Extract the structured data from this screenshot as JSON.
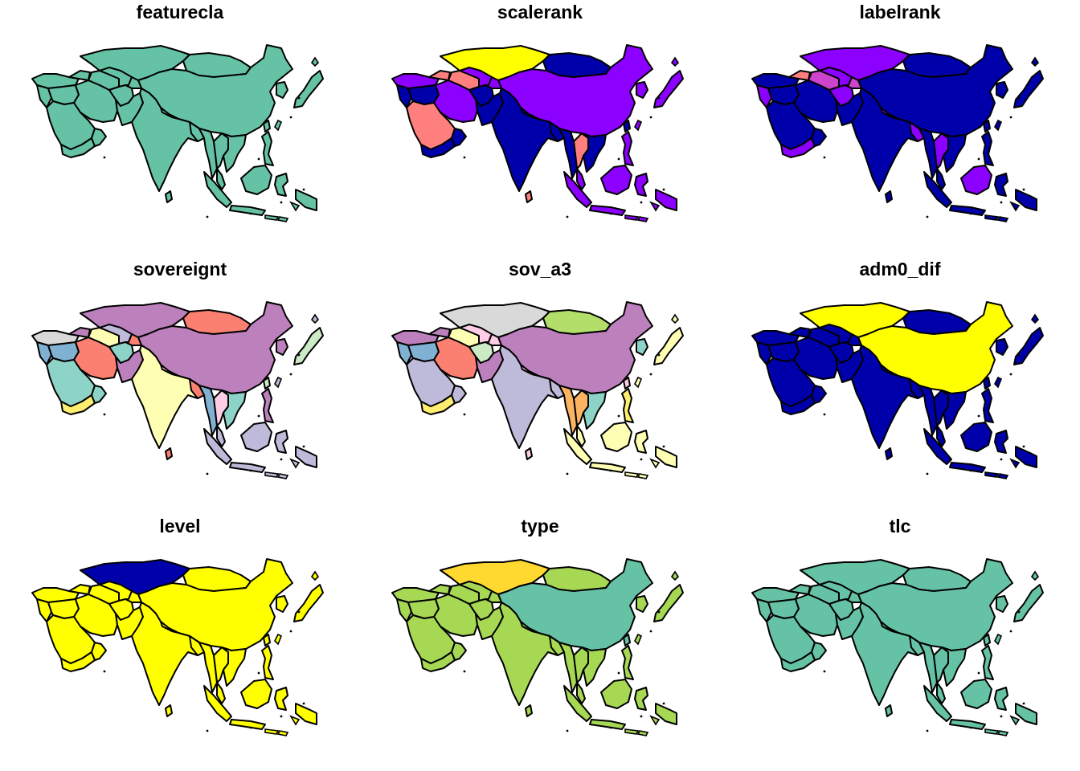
{
  "figure": {
    "panels": [
      {
        "title": "featurecla",
        "colors": {
          "ru_kz": "#66C2A5",
          "mongolia": "#66C2A5",
          "china": "#66C2A5",
          "japan": "#66C2A5",
          "turkey": "#66C2A5",
          "caucasus": "#66C2A5",
          "levant": "#66C2A5",
          "arabia": "#66C2A5",
          "yemen": "#66C2A5",
          "oman": "#66C2A5",
          "iraq": "#66C2A5",
          "iran": "#66C2A5",
          "turkmen": "#66C2A5",
          "uzbek": "#66C2A5",
          "kyrgyz": "#66C2A5",
          "afghan": "#66C2A5",
          "pakistan": "#66C2A5",
          "india": "#66C2A5",
          "nepal": "#66C2A5",
          "bangladesh": "#66C2A5",
          "myanmar": "#66C2A5",
          "thailand": "#66C2A5",
          "indochina": "#66C2A5",
          "malaya": "#66C2A5",
          "sumatra": "#66C2A5",
          "java": "#66C2A5",
          "borneo": "#66C2A5",
          "sulawesi": "#66C2A5",
          "philippines": "#66C2A5",
          "newguinea": "#66C2A5",
          "taiwan": "#66C2A5",
          "korea": "#66C2A5",
          "srilanka": "#66C2A5"
        }
      },
      {
        "title": "scalerank",
        "colors": {
          "ru_kz": "#FFFF00",
          "mongolia": "#0000AA",
          "china": "#8B00FF",
          "japan": "#8B00FF",
          "turkey": "#8B00FF",
          "caucasus": "#FF7F7F",
          "levant": "#0000AA",
          "arabia": "#FF7F7F",
          "yemen": "#0000AA",
          "oman": "#0000AA",
          "iraq": "#0000AA",
          "iran": "#8B00FF",
          "turkmen": "#FF7F7F",
          "uzbek": "#8B00FF",
          "kyrgyz": "#8B00FF",
          "afghan": "#0000AA",
          "pakistan": "#0000AA",
          "india": "#0000AA",
          "nepal": "#0000AA",
          "bangladesh": "#0000AA",
          "myanmar": "#0000AA",
          "thailand": "#FF7F7F",
          "indochina": "#0000AA",
          "malaya": "#8B00FF",
          "sumatra": "#8B00FF",
          "java": "#8B00FF",
          "borneo": "#8B00FF",
          "sulawesi": "#8B00FF",
          "philippines": "#8B00FF",
          "newguinea": "#8B00FF",
          "taiwan": "#0000AA",
          "korea": "#8B00FF",
          "srilanka": "#FF7F7F"
        }
      },
      {
        "title": "labelrank",
        "colors": {
          "ru_kz": "#8B00FF",
          "mongolia": "#0000AA",
          "china": "#0000AA",
          "japan": "#0000AA",
          "turkey": "#0000AA",
          "caucasus": "#FF7F7F",
          "levant": "#8B00FF",
          "arabia": "#0000AA",
          "yemen": "#8B00FF",
          "oman": "#0000AA",
          "iraq": "#0000AA",
          "iran": "#0000AA",
          "turkmen": "#CC44CC",
          "uzbek": "#8B00FF",
          "kyrgyz": "#CC44CC",
          "afghan": "#8B00FF",
          "pakistan": "#0000AA",
          "india": "#0000AA",
          "nepal": "#8B00FF",
          "bangladesh": "#8B00FF",
          "myanmar": "#0000AA",
          "thailand": "#8B00FF",
          "indochina": "#0000AA",
          "malaya": "#0000AA",
          "sumatra": "#0000AA",
          "java": "#0000AA",
          "borneo": "#8B00FF",
          "sulawesi": "#0000AA",
          "philippines": "#0000AA",
          "newguinea": "#0000AA",
          "taiwan": "#0000AA",
          "korea": "#0000AA",
          "srilanka": "#0000AA"
        }
      },
      {
        "title": "sovereignt",
        "colors": {
          "ru_kz": "#BC80BD",
          "mongolia": "#FB8072",
          "china": "#BC80BD",
          "japan": "#CCEBC5",
          "turkey": "#D9D9D9",
          "caucasus": "#BC80BD",
          "levant": "#80B1D3",
          "arabia": "#8DD3C7",
          "yemen": "#FFED6F",
          "oman": "#8DD3C7",
          "iraq": "#80B1D3",
          "iran": "#FB8072",
          "turkmen": "#FFFFB3",
          "uzbek": "#BEBADA",
          "kyrgyz": "#FB8072",
          "afghan": "#8DD3C7",
          "pakistan": "#BC80BD",
          "india": "#FFFFB3",
          "nepal": "#FCCDE5",
          "bangladesh": "#FB8072",
          "myanmar": "#80B1D3",
          "thailand": "#FCCDE5",
          "indochina": "#8DD3C7",
          "malaya": "#BEBADA",
          "sumatra": "#BEBADA",
          "java": "#BEBADA",
          "borneo": "#BEBADA",
          "sulawesi": "#BEBADA",
          "philippines": "#BC80BD",
          "newguinea": "#BEBADA",
          "taiwan": "#CCEBC5",
          "korea": "#BC80BD",
          "srilanka": "#FB8072"
        }
      },
      {
        "title": "sov_a3",
        "colors": {
          "ru_kz": "#D9D9D9",
          "mongolia": "#B3DE69",
          "china": "#BC80BD",
          "japan": "#FFFFB3",
          "turkey": "#BC80BD",
          "caucasus": "#BC80BD",
          "levant": "#80B1D3",
          "arabia": "#BEBADA",
          "yemen": "#FFED6F",
          "oman": "#BEBADA",
          "iraq": "#80B1D3",
          "iran": "#FB8072",
          "turkmen": "#FFFFB3",
          "uzbek": "#FCCDE5",
          "kyrgyz": "#FCCDE5",
          "afghan": "#CCEBC5",
          "pakistan": "#BC80BD",
          "india": "#BEBADA",
          "nepal": "#FCCDE5",
          "bangladesh": "#BEBADA",
          "myanmar": "#FDB462",
          "thailand": "#FDB462",
          "indochina": "#8DD3C7",
          "malaya": "#FFFFB3",
          "sumatra": "#FFFFB3",
          "java": "#FFFFB3",
          "borneo": "#FFFFB3",
          "sulawesi": "#FFFFB3",
          "philippines": "#FFED6F",
          "newguinea": "#FFFFB3",
          "taiwan": "#FCCDE5",
          "korea": "#8DD3C7",
          "srilanka": "#FCCDE5"
        }
      },
      {
        "title": "adm0_dif",
        "colors": {
          "ru_kz": "#FFFF00",
          "mongolia": "#0000AA",
          "china": "#FFFF00",
          "japan": "#0000AA",
          "turkey": "#0000AA",
          "caucasus": "#0000AA",
          "levant": "#0000AA",
          "arabia": "#0000AA",
          "yemen": "#0000AA",
          "oman": "#0000AA",
          "iraq": "#0000AA",
          "iran": "#0000AA",
          "turkmen": "#0000AA",
          "uzbek": "#0000AA",
          "kyrgyz": "#0000AA",
          "afghan": "#0000AA",
          "pakistan": "#0000AA",
          "india": "#0000AA",
          "nepal": "#0000AA",
          "bangladesh": "#0000AA",
          "myanmar": "#0000AA",
          "thailand": "#0000AA",
          "indochina": "#0000AA",
          "malaya": "#0000AA",
          "sumatra": "#0000AA",
          "java": "#0000AA",
          "borneo": "#0000AA",
          "sulawesi": "#0000AA",
          "philippines": "#0000AA",
          "newguinea": "#0000AA",
          "taiwan": "#0000AA",
          "korea": "#0000AA",
          "srilanka": "#0000AA"
        }
      },
      {
        "title": "level",
        "colors": {
          "ru_kz": "#0000AA",
          "mongolia": "#FFFF00",
          "china": "#FFFF00",
          "japan": "#FFFF00",
          "turkey": "#FFFF00",
          "caucasus": "#FFFF00",
          "levant": "#FFFF00",
          "arabia": "#FFFF00",
          "yemen": "#FFFF00",
          "oman": "#FFFF00",
          "iraq": "#FFFF00",
          "iran": "#FFFF00",
          "turkmen": "#FFFF00",
          "uzbek": "#FFFF00",
          "kyrgyz": "#FFFF00",
          "afghan": "#FFFF00",
          "pakistan": "#FFFF00",
          "india": "#FFFF00",
          "nepal": "#FFFF00",
          "bangladesh": "#FFFF00",
          "myanmar": "#FFFF00",
          "thailand": "#FFFF00",
          "indochina": "#FFFF00",
          "malaya": "#FFFF00",
          "sumatra": "#FFFF00",
          "java": "#FFFF00",
          "borneo": "#FFFF00",
          "sulawesi": "#FFFF00",
          "philippines": "#FFFF00",
          "newguinea": "#FFFF00",
          "taiwan": "#FFFF00",
          "korea": "#FFFF00",
          "srilanka": "#FFFF00"
        }
      },
      {
        "title": "type",
        "colors": {
          "ru_kz": "#FFD92F",
          "mongolia": "#A6D854",
          "china": "#66C2A5",
          "japan": "#A6D854",
          "turkey": "#A6D854",
          "caucasus": "#A6D854",
          "levant": "#A6D854",
          "arabia": "#A6D854",
          "yemen": "#A6D854",
          "oman": "#A6D854",
          "iraq": "#A6D854",
          "iran": "#A6D854",
          "turkmen": "#A6D854",
          "uzbek": "#A6D854",
          "kyrgyz": "#A6D854",
          "afghan": "#A6D854",
          "pakistan": "#A6D854",
          "india": "#A6D854",
          "nepal": "#A6D854",
          "bangladesh": "#A6D854",
          "myanmar": "#A6D854",
          "thailand": "#A6D854",
          "indochina": "#A6D854",
          "malaya": "#A6D854",
          "sumatra": "#A6D854",
          "java": "#A6D854",
          "borneo": "#A6D854",
          "sulawesi": "#A6D854",
          "philippines": "#A6D854",
          "newguinea": "#A6D854",
          "taiwan": "#66C2A5",
          "korea": "#A6D854",
          "srilanka": "#A6D854"
        }
      },
      {
        "title": "tlc",
        "colors": {
          "ru_kz": "#66C2A5",
          "mongolia": "#66C2A5",
          "china": "#66C2A5",
          "japan": "#66C2A5",
          "turkey": "#66C2A5",
          "caucasus": "#66C2A5",
          "levant": "#66C2A5",
          "arabia": "#66C2A5",
          "yemen": "#66C2A5",
          "oman": "#66C2A5",
          "iraq": "#66C2A5",
          "iran": "#66C2A5",
          "turkmen": "#66C2A5",
          "uzbek": "#66C2A5",
          "kyrgyz": "#66C2A5",
          "afghan": "#66C2A5",
          "pakistan": "#66C2A5",
          "india": "#66C2A5",
          "nepal": "#66C2A5",
          "bangladesh": "#66C2A5",
          "myanmar": "#66C2A5",
          "thailand": "#66C2A5",
          "indochina": "#66C2A5",
          "malaya": "#66C2A5",
          "sumatra": "#66C2A5",
          "java": "#66C2A5",
          "borneo": "#66C2A5",
          "sulawesi": "#66C2A5",
          "philippines": "#66C2A5",
          "newguinea": "#66C2A5",
          "taiwan": "#66C2A5",
          "korea": "#66C2A5",
          "srilanka": "#66C2A5"
        }
      }
    ]
  }
}
